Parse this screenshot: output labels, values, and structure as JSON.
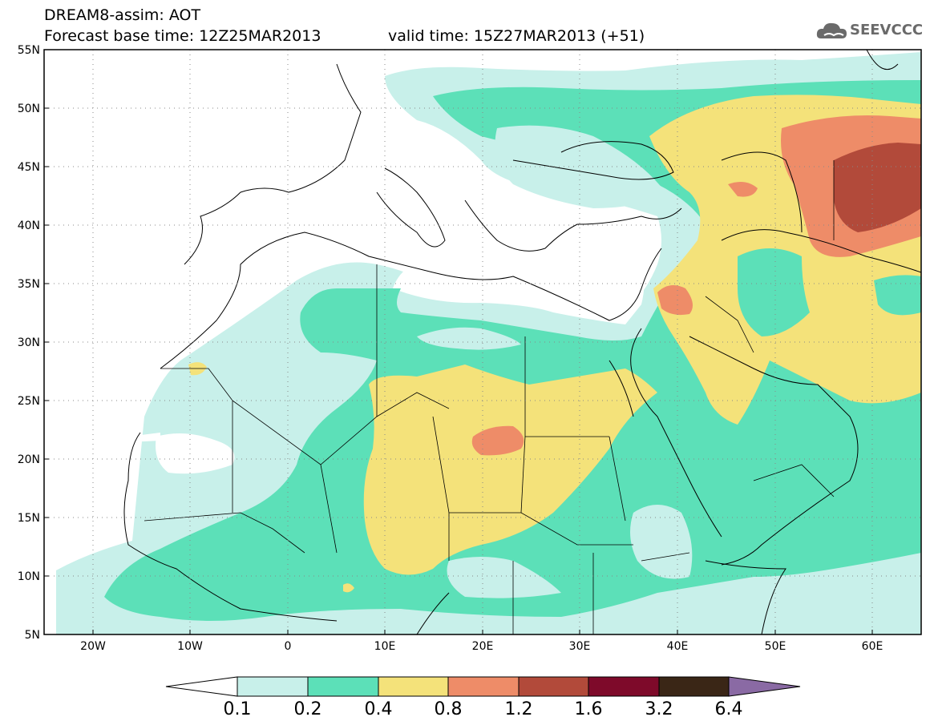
{
  "header": {
    "title": "DREAM8-assim: AOT",
    "base_time": "Forecast base time: 12Z25MAR2013",
    "valid_time": "valid time: 15Z27MAR2013 (+51)"
  },
  "logo": {
    "text": "SEEVCCC",
    "icon": "cloud-icon"
  },
  "map": {
    "projection": "lat-lon",
    "lon_range": [
      -25,
      65
    ],
    "lat_range": [
      5,
      55
    ],
    "lat_ticks": [
      "55N",
      "50N",
      "45N",
      "40N",
      "35N",
      "30N",
      "25N",
      "20N",
      "15N",
      "10N",
      "5N"
    ],
    "lon_ticks": [
      "20W",
      "10W",
      "0",
      "10E",
      "20E",
      "30E",
      "40E",
      "50E",
      "60E"
    ],
    "field": "Aerosol Optical Thickness",
    "grid": "dotted"
  },
  "colorbar": {
    "thresholds": [
      "0.1",
      "0.2",
      "0.4",
      "0.8",
      "1.2",
      "1.6",
      "3.2",
      "6.4"
    ],
    "colors": [
      "#c8f0ea",
      "#5ce0b8",
      "#f4e27a",
      "#ee8c68",
      "#b24a3a",
      "#7e0a2a",
      "#3a2616",
      "#8a6aa4"
    ],
    "below_color": "#ffffff",
    "extend": "both"
  },
  "colors": {
    "c01": "#c8f0ea",
    "c02": "#5ce0b8",
    "c04": "#f4e27a",
    "c08": "#ee8c68",
    "c12": "#b24a3a"
  }
}
